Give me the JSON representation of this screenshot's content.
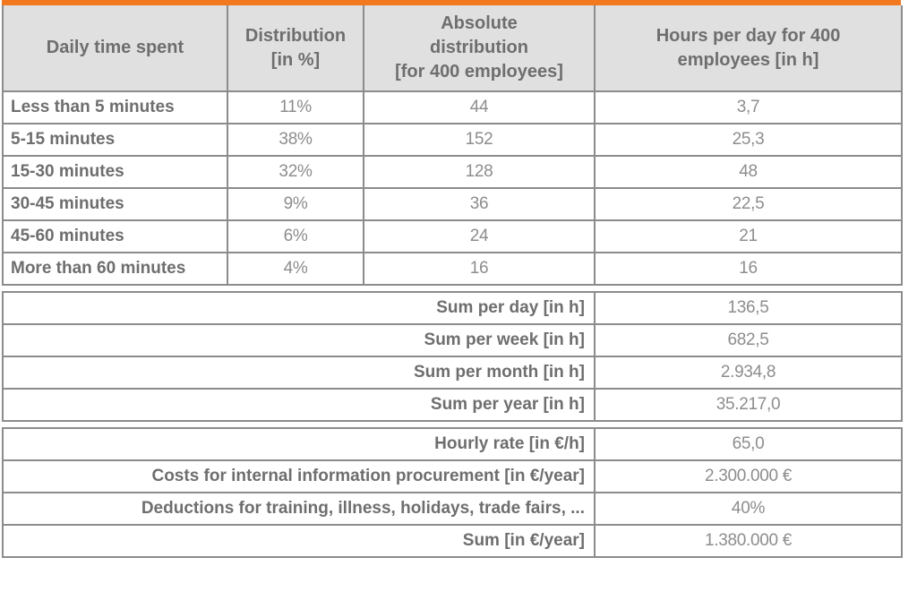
{
  "page": {
    "accent_color": "#F2791F",
    "header_bg": "#e0e0e0",
    "border_color": "#8c8c8c",
    "label_color": "#6e6e6e",
    "value_color": "#8d8d8d"
  },
  "chart_data": {
    "type": "table",
    "headers": [
      "Daily time spent",
      "Distribution\n[in %]",
      "Absolute\ndistribution\n[for 400 employees]",
      "Hours per day for 400\nemployees [in h]"
    ],
    "rows": [
      {
        "label": "Less than 5 minutes",
        "distribution_pct": "11%",
        "absolute": "44",
        "hours_per_day": "3,7"
      },
      {
        "label": "5-15 minutes",
        "distribution_pct": "38%",
        "absolute": "152",
        "hours_per_day": "25,3"
      },
      {
        "label": "15-30 minutes",
        "distribution_pct": "32%",
        "absolute": "128",
        "hours_per_day": "48"
      },
      {
        "label": "30-45 minutes",
        "distribution_pct": "9%",
        "absolute": "36",
        "hours_per_day": "22,5"
      },
      {
        "label": "45-60 minutes",
        "distribution_pct": "6%",
        "absolute": "24",
        "hours_per_day": "21"
      },
      {
        "label": "More than 60 minutes",
        "distribution_pct": "4%",
        "absolute": "16",
        "hours_per_day": "16"
      }
    ],
    "hour_sums": [
      {
        "label": "Sum per day [in h]",
        "value": "136,5"
      },
      {
        "label": "Sum per week [in h]",
        "value": "682,5"
      },
      {
        "label": "Sum per month [in h]",
        "value": "2.934,8"
      },
      {
        "label": "Sum per year [in h]",
        "value": "35.217,0"
      }
    ],
    "cost_rows": [
      {
        "label": "Hourly rate [in €/h]",
        "value": "65,0"
      },
      {
        "label": "Costs for internal information procurement [in €/year]",
        "value": "2.300.000 €"
      },
      {
        "label": "Deductions for training, illness, holidays, trade fairs, ...",
        "value": "40%"
      },
      {
        "label": "Sum [in €/year]",
        "value": "1.380.000 €"
      }
    ]
  }
}
